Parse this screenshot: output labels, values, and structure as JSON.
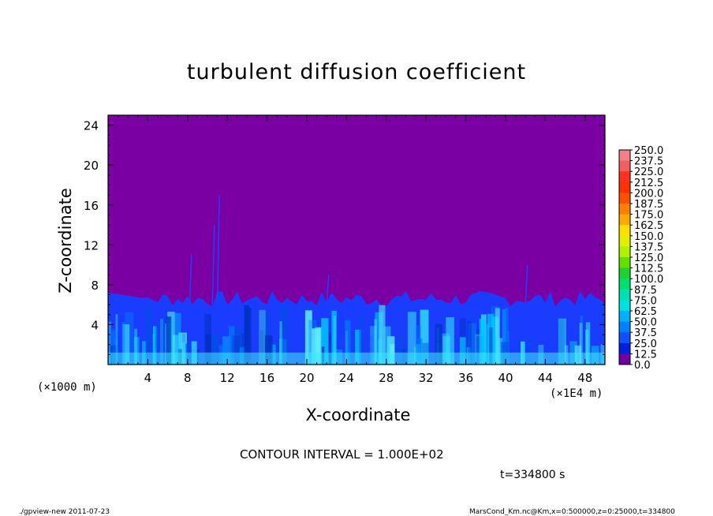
{
  "chart_data": {
    "type": "heatmap",
    "title": "turbulent diffusion coefficient",
    "xlabel": "X-coordinate",
    "ylabel": "Z-coordinate",
    "x_unit_label": "(×1000 m)",
    "x_unit_label2": "(×1E4 m)",
    "x_ticks": [
      "4",
      "8",
      "12",
      "16",
      "20",
      "24",
      "28",
      "32",
      "36",
      "40",
      "44",
      "48"
    ],
    "y_ticks": [
      "4",
      "8",
      "12",
      "16",
      "20",
      "24"
    ],
    "xlim": [
      0,
      50
    ],
    "ylim": [
      0,
      25
    ],
    "colorbar_ticks": [
      "250.0",
      "237.5",
      "225.0",
      "212.5",
      "200.0",
      "187.5",
      "175.0",
      "162.5",
      "150.0",
      "137.5",
      "125.0",
      "112.5",
      "100.0",
      "87.5",
      "75.0",
      "62.5",
      "50.0",
      "37.5",
      "25.0",
      "12.5",
      "0.0"
    ],
    "colorbar_colors": [
      "#f0808a",
      "#f06060",
      "#ff3020",
      "#ff3000",
      "#ff5000",
      "#ff8000",
      "#ffaa00",
      "#ffe000",
      "#e0f000",
      "#b0f000",
      "#60e000",
      "#20d030",
      "#00e070",
      "#00e0b0",
      "#00e0e0",
      "#00b0ff",
      "#0080ff",
      "#1050ff",
      "#0020e0",
      "#2000b0",
      "#7000a0"
    ],
    "background_value_color": "#7a00a4",
    "turbulent_layer_top_approx": 7
  },
  "annotations": {
    "contour_interval": "CONTOUR INTERVAL = 1.000E+02",
    "time": "t=334800 s"
  },
  "footer": {
    "left": "./gpview-new  2011-07-23",
    "right": "MarsCond_Km.nc@Km,x=0:500000,z=0:25000,t=334800"
  }
}
